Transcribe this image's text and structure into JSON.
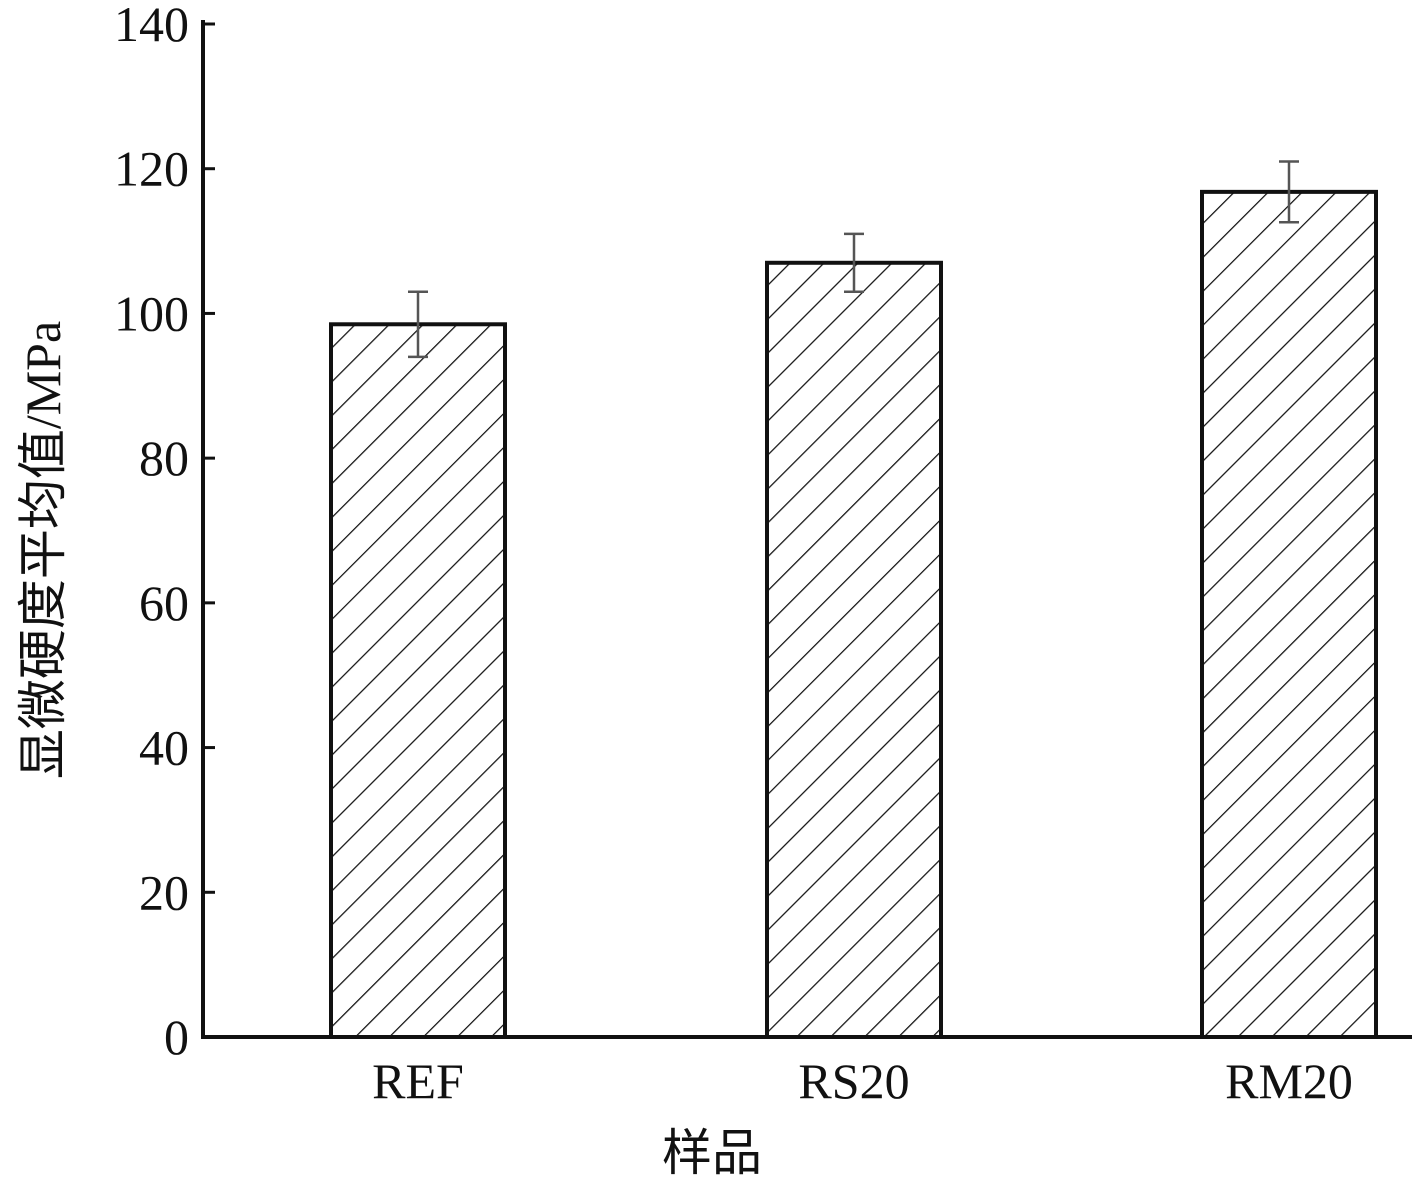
{
  "chart_data": {
    "type": "bar",
    "categories": [
      "REF",
      "RS20",
      "RM20"
    ],
    "values": [
      98.5,
      107,
      116.8
    ],
    "errors": [
      4.5,
      4.0,
      4.2
    ],
    "xlabel": "样品",
    "ylabel": "显微硬度平均值/MPa",
    "ylim": [
      0,
      140
    ],
    "yticks": [
      0,
      20,
      40,
      60,
      80,
      100,
      120,
      140
    ],
    "grid": false,
    "legend": "none",
    "bar_fill": "hatched",
    "colors": {
      "bar_stroke": "#111111",
      "hatch": "#111111",
      "axis": "#111111",
      "error_bar": "#555555"
    }
  }
}
